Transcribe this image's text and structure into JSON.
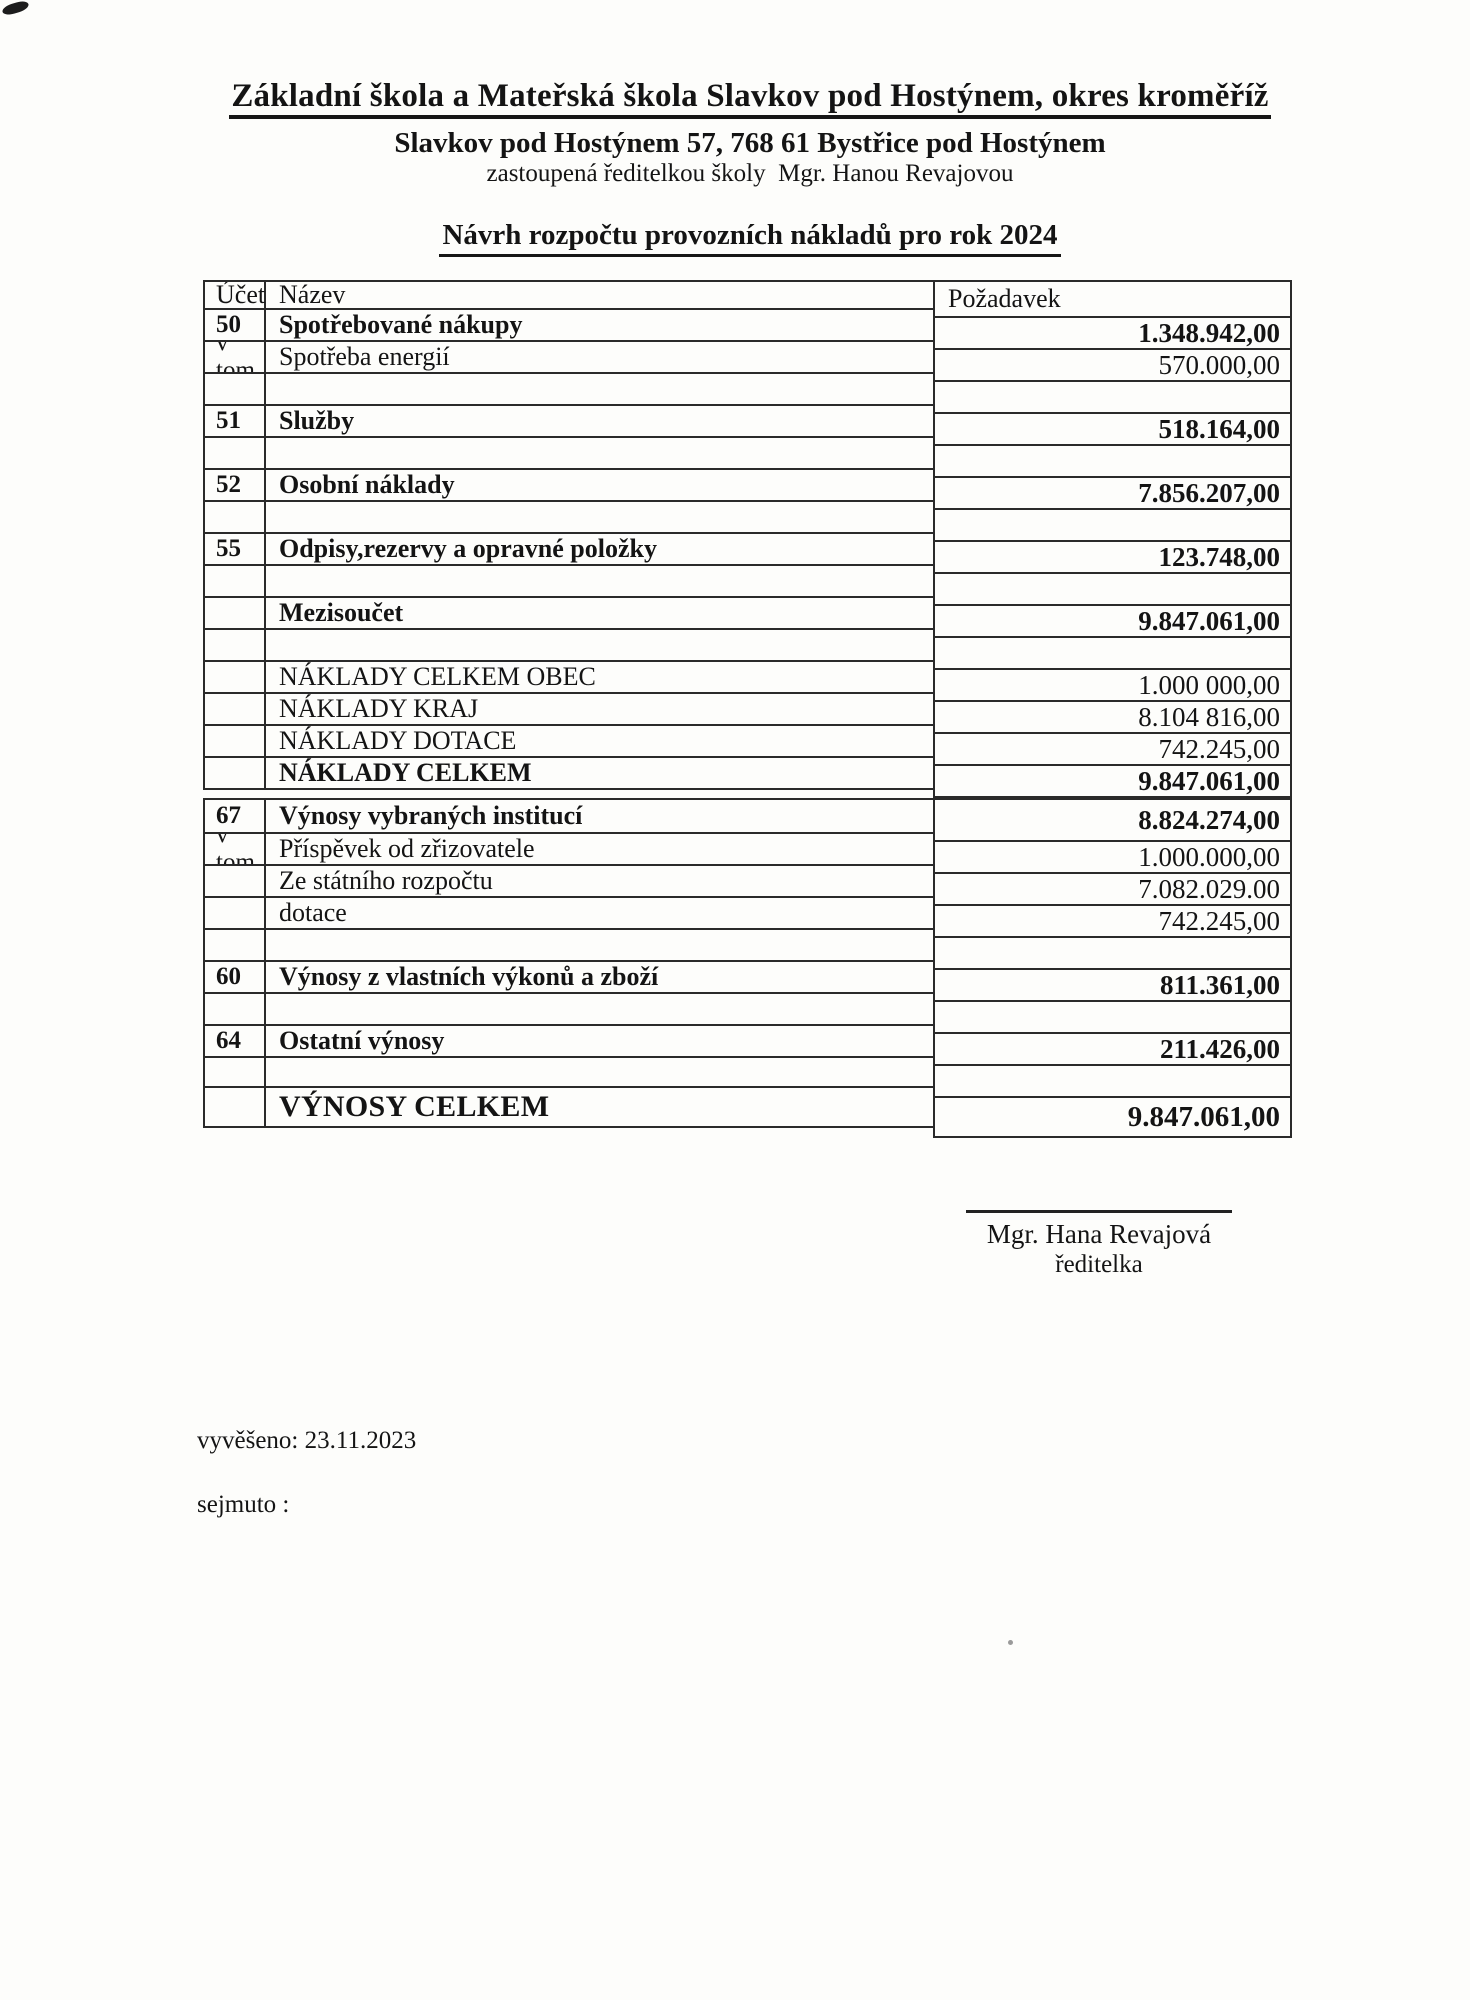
{
  "page": {
    "header": {
      "org_name": "Základní škola a Mateřská škola Slavkov pod Hostýnem, okres kroměříž",
      "address": "Slavkov pod Hostýnem 57, 768 61 Bystřice pod Hostýnem",
      "represented_by": "zastoupená ředitelkou školy  Mgr. Hanou Revajovou",
      "doc_title": "Návrh rozpočtu provozních nákladů pro rok 2024"
    },
    "costs_table": {
      "headers": {
        "account": "Účet",
        "name": "Název",
        "value": "Požadavek"
      },
      "rows": [
        {
          "acct": "50",
          "name": "Spotřebované nákupy",
          "b": true
        },
        {
          "acct": "v tom",
          "name": "Spotřeba energií"
        },
        {},
        {
          "acct": "51",
          "name": "Služby",
          "b": true
        },
        {},
        {
          "acct": "52",
          "name": "Osobní náklady",
          "b": true
        },
        {},
        {
          "acct": "55",
          "name": "Odpisy,rezervy a opravné položky",
          "b": true
        },
        {},
        {
          "name": "Mezisoučet",
          "b": true
        },
        {},
        {
          "name": "NÁKLADY CELKEM OBEC"
        },
        {
          "name": "NÁKLADY KRAJ"
        },
        {
          "name": "NÁKLADY DOTACE"
        },
        {
          "name": "NÁKLADY CELKEM",
          "b": true
        }
      ],
      "values": [
        {
          "v": "1.348.942,00",
          "b": true
        },
        {
          "v": "570.000,00"
        },
        {},
        {
          "v": "518.164,00",
          "b": true
        },
        {},
        {
          "v": "7.856.207,00",
          "b": true
        },
        {},
        {
          "v": "123.748,00",
          "b": true
        },
        {},
        {
          "v": "9.847.061,00",
          "b": true
        },
        {},
        {
          "v": "1.000 000,00"
        },
        {
          "v": "8.104 816,00"
        },
        {
          "v": "742.245,00"
        },
        {
          "v": "9.847.061,00",
          "b": true
        }
      ]
    },
    "revenue_table": {
      "rows": [
        {
          "acct": "67",
          "name": "Výnosy vybraných institucí",
          "b": true
        },
        {
          "acct": "v tom",
          "name": "Příspěvek od zřizovatele"
        },
        {
          "name": "Ze státního rozpočtu"
        },
        {
          "name": "dotace"
        },
        {},
        {
          "acct": "60",
          "name": "Výnosy z vlastních výkonů a zboží",
          "b": true
        },
        {},
        {
          "acct": "64",
          "name": "Ostatní výnosy",
          "b": true
        },
        {},
        {
          "name": "VÝNOSY CELKEM",
          "b": true,
          "big": true
        }
      ],
      "values": [
        {
          "v": "8.824.274,00",
          "b": true
        },
        {
          "v": "1.000.000,00"
        },
        {
          "v": "7.082.029.00"
        },
        {
          "v": "742.245,00"
        },
        {},
        {
          "v": "811.361,00",
          "b": true
        },
        {},
        {
          "v": "211.426,00",
          "b": true
        },
        {},
        {
          "v": "9.847.061,00",
          "b": true,
          "big": true
        }
      ]
    },
    "signature": {
      "name": "Mgr. Hana Revajová",
      "role": "ředitelka"
    },
    "footer": {
      "posted": "vyvěšeno: 23.11.2023",
      "removed": "sejmuto :"
    }
  },
  "colors": {
    "ink": "#141414",
    "line": "#2a2a2a",
    "paper": "#fdfdfb"
  }
}
